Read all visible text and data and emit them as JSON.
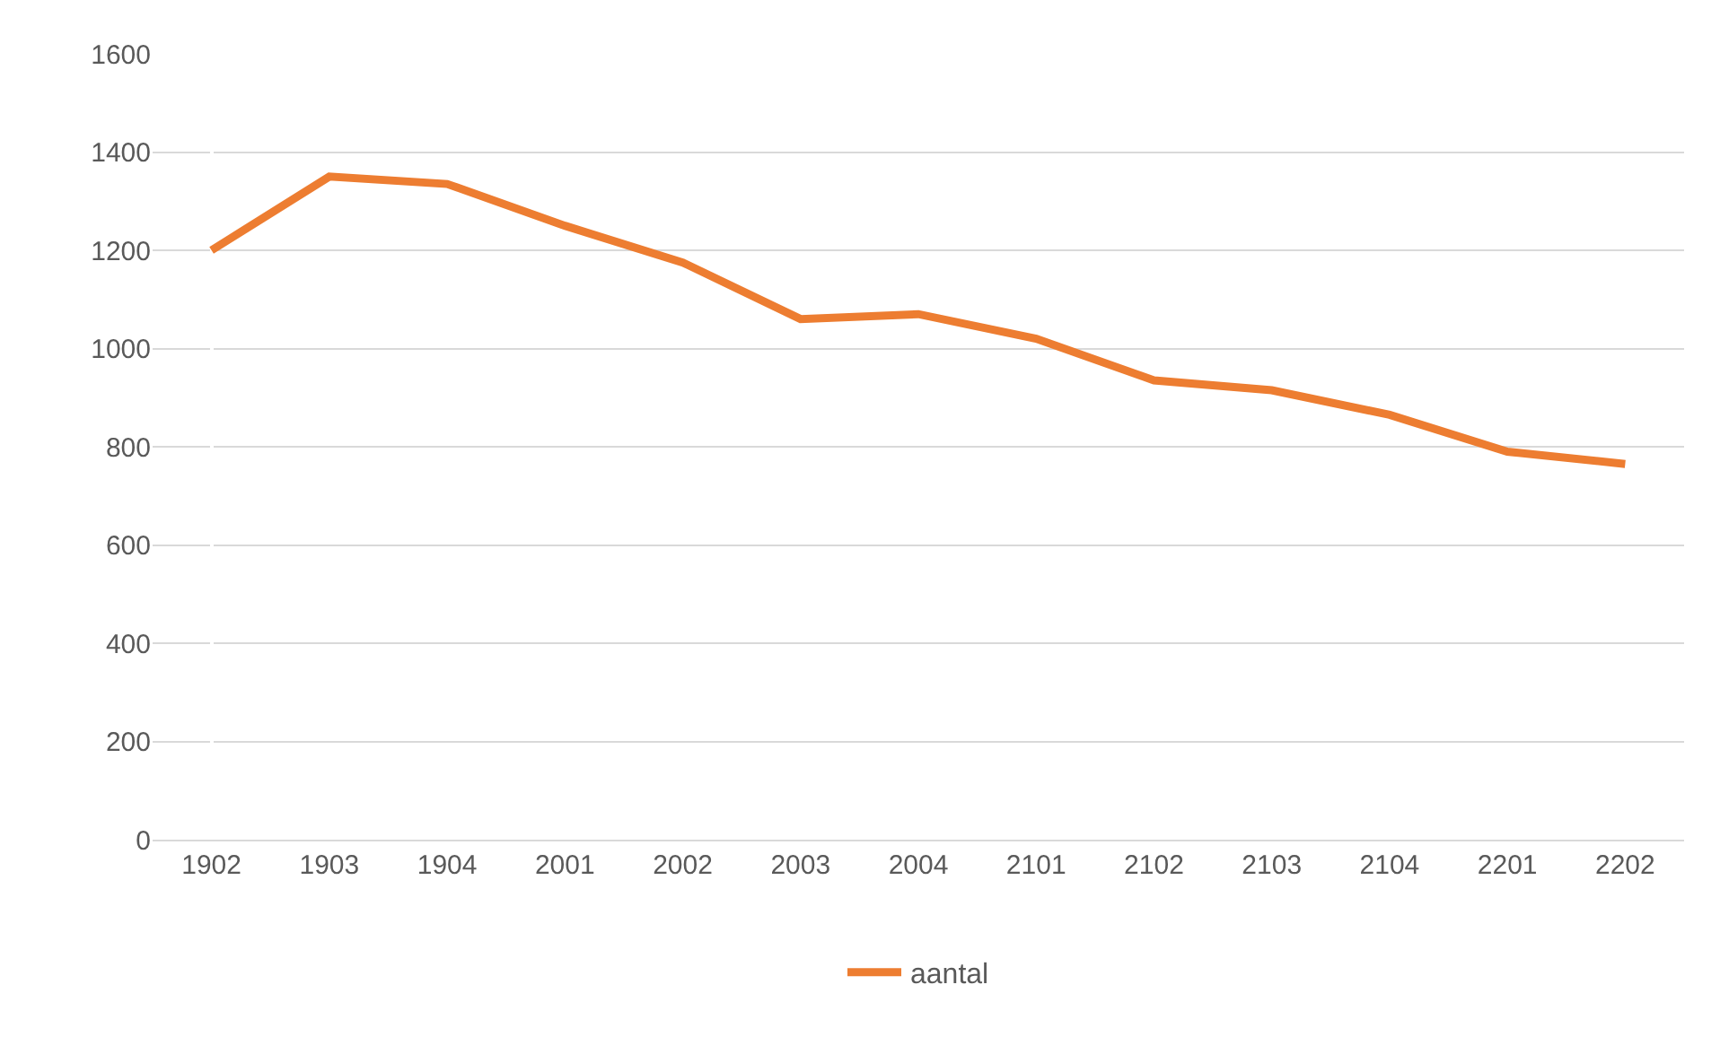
{
  "chart_data": {
    "type": "line",
    "categories": [
      "1902",
      "1903",
      "1904",
      "2001",
      "2002",
      "2003",
      "2004",
      "2101",
      "2102",
      "2103",
      "2104",
      "2201",
      "2202"
    ],
    "series": [
      {
        "name": "aantal",
        "color": "#ed7d31",
        "values": [
          1200,
          1350,
          1335,
          1250,
          1175,
          1060,
          1070,
          1020,
          935,
          915,
          865,
          790,
          765
        ]
      }
    ],
    "ylim": [
      0,
      1600
    ],
    "yticks": [
      0,
      200,
      400,
      600,
      800,
      1000,
      1200,
      1400,
      1600
    ],
    "grid": "y",
    "legend": "bottom",
    "marker": "none",
    "line_style": "solid"
  }
}
